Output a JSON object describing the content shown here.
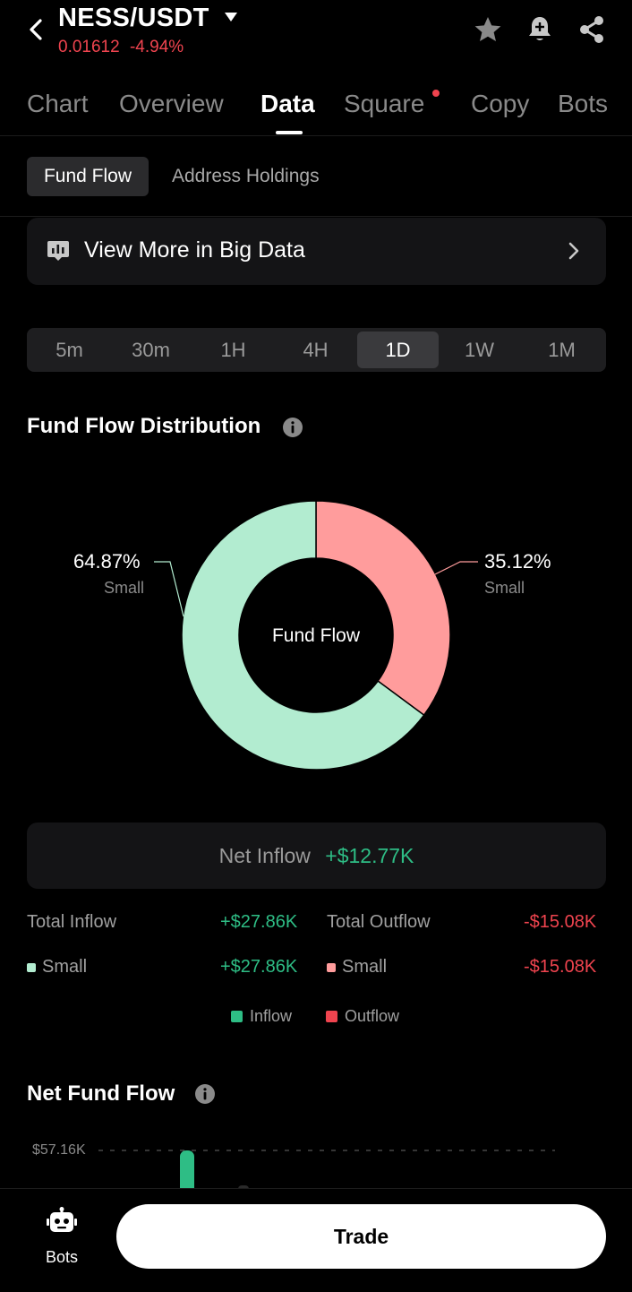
{
  "header": {
    "pair": "NESS/USDT",
    "price": "0.01612",
    "change": "-4.94%"
  },
  "tabs": [
    {
      "label": "Chart"
    },
    {
      "label": "Overview"
    },
    {
      "label": "Data",
      "active": true
    },
    {
      "label": "Square",
      "dot": true
    },
    {
      "label": "Copy"
    },
    {
      "label": "Bots"
    }
  ],
  "subtabs": {
    "active": "Fund Flow",
    "other": "Address Holdings"
  },
  "bigdata": {
    "label": "View More in Big Data"
  },
  "intervals": [
    {
      "label": "5m"
    },
    {
      "label": "30m"
    },
    {
      "label": "1H"
    },
    {
      "label": "4H"
    },
    {
      "label": "1D",
      "active": true
    },
    {
      "label": "1W"
    },
    {
      "label": "1M"
    }
  ],
  "distribution": {
    "title": "Fund Flow Distribution",
    "center_label": "Fund Flow",
    "inflow_pct": "64.87%",
    "inflow_label": "Small",
    "outflow_pct": "35.12%",
    "outflow_label": "Small"
  },
  "chart_data": {
    "type": "pie",
    "title": "Fund Flow Distribution",
    "labels": [
      "Small",
      "Small"
    ],
    "values": [
      35.12,
      64.87
    ],
    "colors": [
      "#ff9c9c",
      "#b2ecd0"
    ]
  },
  "net_inflow": {
    "label": "Net Inflow",
    "value": "+$12.77K"
  },
  "totals": {
    "inflow_label": "Total Inflow",
    "inflow_value": "+$27.86K",
    "outflow_label": "Total Outflow",
    "outflow_value": "-$15.08K",
    "small_in_label": "Small",
    "small_in_value": "+$27.86K",
    "small_out_label": "Small",
    "small_out_value": "-$15.08K"
  },
  "legend": {
    "inflow": "Inflow",
    "outflow": "Outflow"
  },
  "net_fund_flow": {
    "title": "Net Fund Flow",
    "ymax_label": "$57.16K"
  },
  "bottom": {
    "bots_label": "Bots",
    "trade_label": "Trade"
  },
  "colors": {
    "green": "#2ebd85",
    "red": "#f0444f",
    "pie_green": "#b2ecd0",
    "pie_red": "#ff9c9c"
  }
}
